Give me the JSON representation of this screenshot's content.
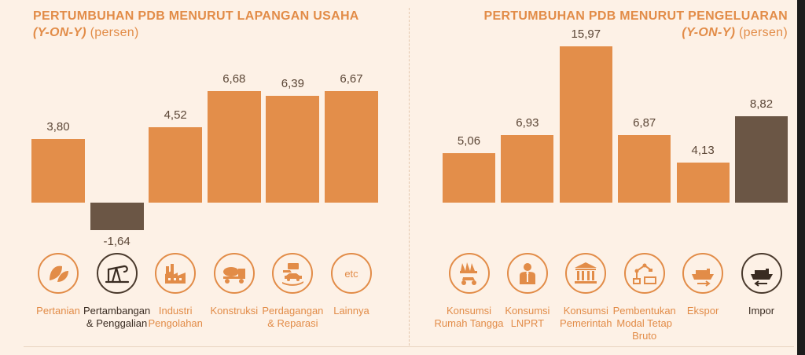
{
  "left_panel": {
    "title": "PERTUMBUHAN PDB MENURUT LAPANGAN USAHA",
    "subtitle_italic": "(Y-ON-Y)",
    "subtitle_rest": " (persen)",
    "categories": [
      {
        "label_lines": [
          "Pertanian"
        ],
        "value_label": "3,80",
        "icon": "leaf-icon"
      },
      {
        "label_lines": [
          "Pertambangan",
          "& Penggalian"
        ],
        "value_label": "-1,64",
        "icon": "oil-pump-icon"
      },
      {
        "label_lines": [
          "Industri",
          "Pengolahan"
        ],
        "value_label": "4,52",
        "icon": "factory-icon"
      },
      {
        "label_lines": [
          "Konstruksi"
        ],
        "value_label": "6,68",
        "icon": "cement-truck-icon"
      },
      {
        "label_lines": [
          "Perdagangan",
          "& Reparasi"
        ],
        "value_label": "6,39",
        "icon": "trade-hand-car-icon"
      },
      {
        "label_lines": [
          "Lainnya"
        ],
        "value_label": "6,67",
        "icon": "etc-icon",
        "icon_text": "etc"
      }
    ]
  },
  "right_panel": {
    "title": "PERTUMBUHAN PDB MENURUT PENGELUARAN",
    "subtitle_italic": "(Y-ON-Y)",
    "subtitle_rest": " (persen)",
    "categories": [
      {
        "label_lines": [
          "Konsumsi",
          "Rumah Tangga"
        ],
        "value_label": "5,06",
        "icon": "household-consumption-icon"
      },
      {
        "label_lines": [
          "Konsumsi",
          "LNPRT"
        ],
        "value_label": "6,93",
        "icon": "person-icon"
      },
      {
        "label_lines": [
          "Konsumsi",
          "Pemerintah"
        ],
        "value_label": "15,97",
        "icon": "government-building-icon"
      },
      {
        "label_lines": [
          "Pembentukan",
          "Modal Tetap",
          "Bruto"
        ],
        "value_label": "6,87",
        "icon": "robot-arm-icon"
      },
      {
        "label_lines": [
          "Ekspor"
        ],
        "value_label": "4,13",
        "icon": "ship-export-icon"
      },
      {
        "label_lines": [
          "Impor"
        ],
        "value_label": "8,82",
        "icon": "ship-import-icon"
      }
    ]
  },
  "colors": {
    "positive": "#e38e4a",
    "highlight": "#6b5645",
    "text_orange": "#e28c48",
    "background": "#fdf1e6"
  },
  "chart_data": [
    {
      "type": "bar",
      "title": "PERTUMBUHAN PDB MENURUT LAPANGAN USAHA (Y-ON-Y) (persen)",
      "categories": [
        "Pertanian",
        "Pertambangan & Penggalian",
        "Industri Pengolahan",
        "Konstruksi",
        "Perdagangan & Reparasi",
        "Lainnya"
      ],
      "values": [
        3.8,
        -1.64,
        4.52,
        6.68,
        6.39,
        6.67
      ],
      "highlight": [
        false,
        true,
        false,
        false,
        false,
        false
      ],
      "ylim": [
        -2,
        7
      ],
      "grid": false
    },
    {
      "type": "bar",
      "title": "PERTUMBUHAN PDB MENURUT PENGELUARAN (Y-ON-Y) (persen)",
      "categories": [
        "Konsumsi Rumah Tangga",
        "Konsumsi LNPRT",
        "Konsumsi Pemerintah",
        "Pembentukan Modal Tetap Bruto",
        "Ekspor",
        "Impor"
      ],
      "values": [
        5.06,
        6.93,
        15.97,
        6.87,
        4.13,
        8.82
      ],
      "highlight": [
        false,
        false,
        false,
        false,
        false,
        true
      ],
      "ylim": [
        0,
        16
      ],
      "grid": false
    }
  ]
}
